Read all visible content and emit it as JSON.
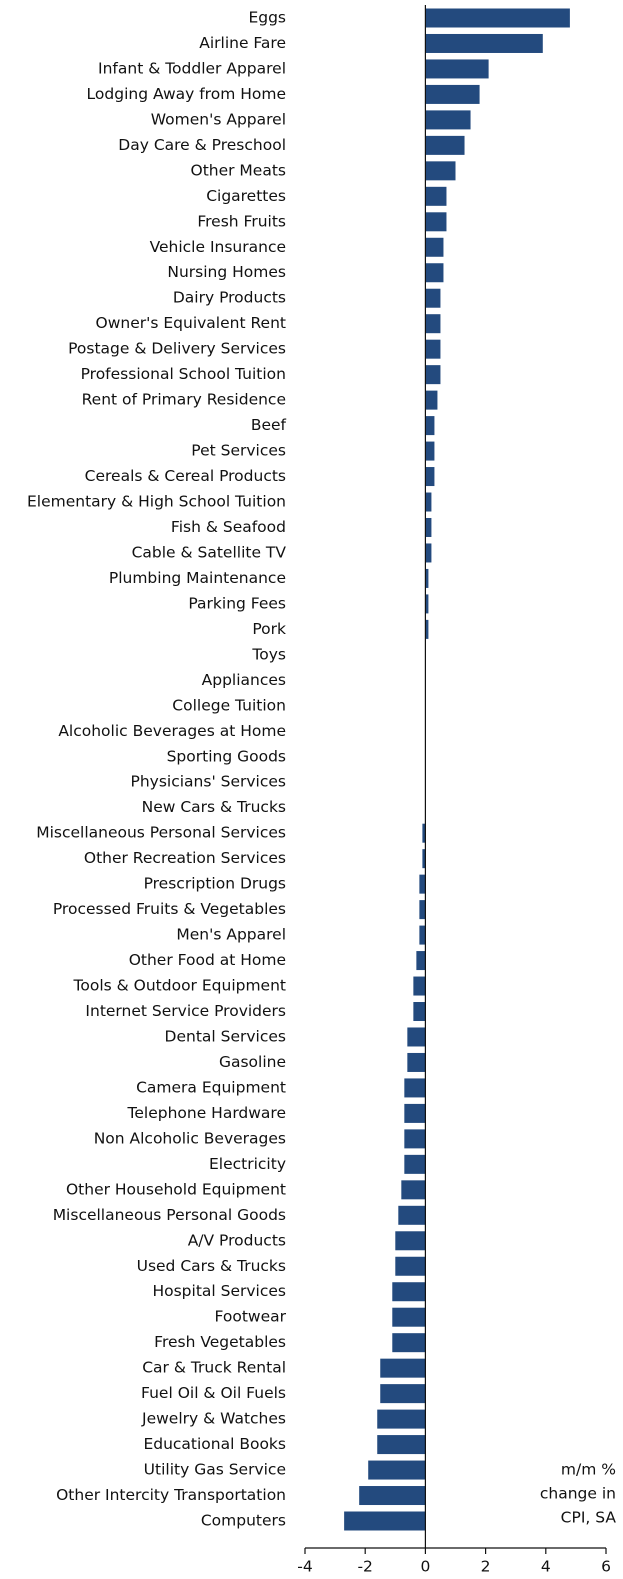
{
  "chart_data": {
    "type": "barh",
    "categories": [
      "Eggs",
      "Airline Fare",
      "Infant & Toddler Apparel",
      "Lodging Away from Home",
      "Women's Apparel",
      "Day Care & Preschool",
      "Other Meats",
      "Cigarettes",
      "Fresh Fruits",
      "Vehicle Insurance",
      "Nursing Homes",
      "Dairy Products",
      "Owner's Equivalent Rent",
      "Postage & Delivery Services",
      "Professional School Tuition",
      "Rent of Primary Residence",
      "Beef",
      "Pet Services",
      "Cereals & Cereal Products",
      "Elementary & High School Tuition",
      "Fish & Seafood",
      "Cable & Satellite TV",
      "Plumbing Maintenance",
      "Parking Fees",
      "Pork",
      "Toys",
      "Appliances",
      "College Tuition",
      "Alcoholic Beverages at Home",
      "Sporting Goods",
      "Physicians' Services",
      "New Cars & Trucks",
      "Miscellaneous Personal Services",
      "Other Recreation Services",
      "Prescription Drugs",
      "Processed Fruits & Vegetables",
      "Men's Apparel",
      "Other Food at Home",
      "Tools & Outdoor Equipment",
      "Internet Service Providers",
      "Dental Services",
      "Gasoline",
      "Camera Equipment",
      "Telephone Hardware",
      "Non Alcoholic Beverages",
      "Electricity",
      "Other Household Equipment",
      "Miscellaneous Personal Goods",
      "A/V Products",
      "Used Cars & Trucks",
      "Hospital Services",
      "Footwear",
      "Fresh Vegetables",
      "Car & Truck Rental",
      "Fuel Oil & Oil Fuels",
      "Jewelry & Watches",
      "Educational Books",
      "Utility Gas Service",
      "Other Intercity Transportation",
      "Computers"
    ],
    "values": [
      4.8,
      3.9,
      2.1,
      1.8,
      1.5,
      1.3,
      1.0,
      0.7,
      0.7,
      0.6,
      0.6,
      0.5,
      0.5,
      0.5,
      0.5,
      0.4,
      0.3,
      0.3,
      0.3,
      0.2,
      0.2,
      0.2,
      0.1,
      0.1,
      0.1,
      0,
      0,
      0,
      0,
      0,
      0,
      0,
      -0.1,
      -0.1,
      -0.2,
      -0.2,
      -0.2,
      -0.3,
      -0.4,
      -0.4,
      -0.6,
      -0.6,
      -0.7,
      -0.7,
      -0.7,
      -0.7,
      -0.8,
      -0.9,
      -1.0,
      -1.0,
      -1.1,
      -1.1,
      -1.1,
      -1.5,
      -1.5,
      -1.6,
      -1.6,
      -1.9,
      -2.2,
      -2.7
    ],
    "color": "#234a7e",
    "xlim": [
      -4,
      6
    ],
    "xticks": [
      -4,
      -2,
      0,
      2,
      4,
      6
    ],
    "annotation": [
      "m/m %",
      "change in",
      "CPI, SA"
    ]
  }
}
